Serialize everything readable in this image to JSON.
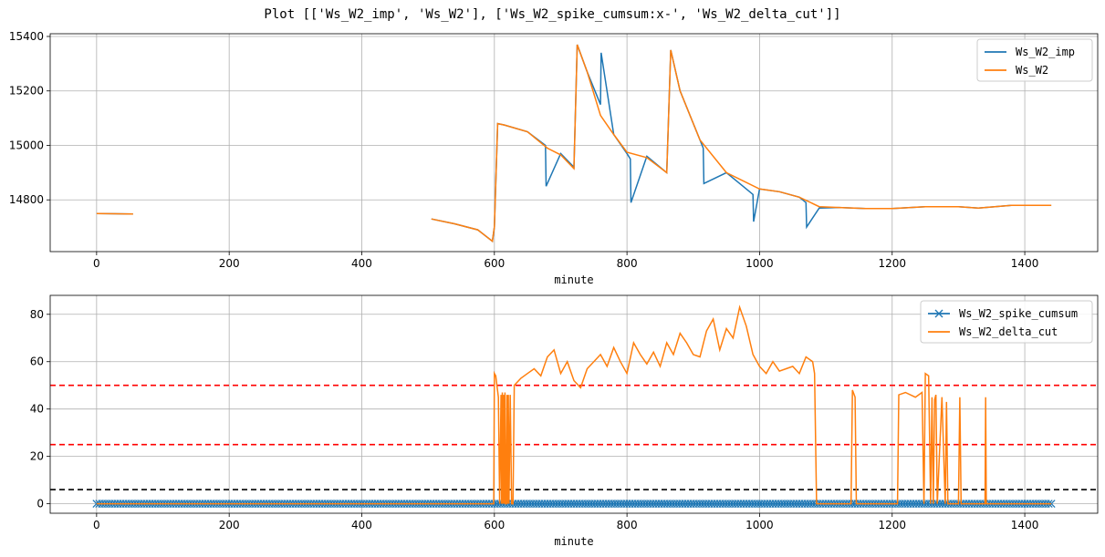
{
  "figure": {
    "title": "Plot [['Ws_W2_imp', 'Ws_W2'], ['Ws_W2_spike_cumsum:x-', 'Ws_W2_delta_cut']]"
  },
  "chart_data": [
    {
      "type": "line",
      "xlabel": "minute",
      "ylabel": "",
      "xlim": [
        -70,
        1510
      ],
      "ylim": [
        14610,
        15410
      ],
      "xticks": [
        0,
        200,
        400,
        600,
        800,
        1000,
        1200,
        1400
      ],
      "yticks": [
        14800,
        15000,
        15200,
        15400
      ],
      "grid": true,
      "legend": "top-right",
      "series": [
        {
          "name": "Ws_W2_imp",
          "color": "#1f77b4",
          "x": [
            0,
            55,
            505,
            540,
            575,
            597,
            600,
            605,
            615,
            650,
            677,
            678,
            700,
            720,
            725,
            740,
            760,
            761,
            780,
            800,
            805,
            806,
            830,
            860,
            866,
            880,
            910,
            915,
            916,
            950,
            975,
            990,
            991,
            1000,
            1030,
            1060,
            1070,
            1071,
            1090,
            1120,
            1160,
            1200,
            1250,
            1300,
            1330,
            1380,
            1440
          ],
          "y": [
            14750,
            14748,
            14730,
            14712,
            14690,
            14648,
            14700,
            15080,
            15075,
            15050,
            15000,
            14850,
            14970,
            14920,
            15370,
            15270,
            15150,
            15340,
            15040,
            14970,
            14950,
            14790,
            14960,
            14900,
            15350,
            15200,
            15020,
            14990,
            14860,
            14900,
            14850,
            14820,
            14720,
            14840,
            14830,
            14810,
            14790,
            14700,
            14770,
            14772,
            14768,
            14768,
            14775,
            14775,
            14770,
            14780,
            14780
          ]
        },
        {
          "name": "Ws_W2",
          "color": "#ff7f0e",
          "x": [
            0,
            55,
            505,
            540,
            575,
            597,
            600,
            605,
            615,
            650,
            680,
            700,
            720,
            725,
            740,
            760,
            780,
            800,
            830,
            860,
            866,
            880,
            910,
            950,
            1000,
            1030,
            1060,
            1090,
            1120,
            1160,
            1200,
            1250,
            1300,
            1330,
            1380,
            1440
          ],
          "y": [
            14750,
            14748,
            14730,
            14712,
            14690,
            14648,
            14700,
            15080,
            15075,
            15050,
            14990,
            14965,
            14915,
            15370,
            15270,
            15110,
            15040,
            14975,
            14955,
            14900,
            15350,
            15200,
            15020,
            14900,
            14840,
            14830,
            14810,
            14775,
            14772,
            14768,
            14768,
            14775,
            14775,
            14770,
            14780,
            14780
          ]
        }
      ],
      "gaps": [
        [
          55,
          505
        ]
      ]
    },
    {
      "type": "line",
      "xlabel": "minute",
      "ylabel": "",
      "xlim": [
        -70,
        1510
      ],
      "ylim": [
        -4,
        88
      ],
      "xticks": [
        0,
        200,
        400,
        600,
        800,
        1000,
        1200,
        1400
      ],
      "yticks": [
        0,
        20,
        40,
        60,
        80
      ],
      "grid": true,
      "legend": "top-right",
      "hlines": [
        {
          "y": 50,
          "color": "#ff0000",
          "style": "dashed"
        },
        {
          "y": 25,
          "color": "#ff0000",
          "style": "dashed"
        },
        {
          "y": 6,
          "color": "#000000",
          "style": "dashed"
        }
      ],
      "series": [
        {
          "name": "Ws_W2_spike_cumsum",
          "color": "#1f77b4",
          "marker": "x",
          "x": [
            0,
            1440
          ],
          "y": [
            0,
            0
          ]
        },
        {
          "name": "Ws_W2_delta_cut",
          "color": "#ff7f0e",
          "x": [
            0,
            599,
            600,
            602,
            606,
            608,
            610,
            611,
            612,
            613,
            614,
            615,
            616,
            617,
            618,
            619,
            620,
            621,
            622,
            624,
            626,
            628,
            630,
            640,
            650,
            660,
            670,
            680,
            690,
            700,
            710,
            720,
            730,
            740,
            750,
            760,
            770,
            780,
            790,
            800,
            810,
            820,
            830,
            840,
            850,
            860,
            870,
            880,
            890,
            900,
            910,
            920,
            930,
            940,
            950,
            960,
            970,
            980,
            990,
            1000,
            1010,
            1020,
            1030,
            1040,
            1050,
            1060,
            1070,
            1080,
            1083,
            1086,
            1138,
            1140,
            1144,
            1146,
            1208,
            1210,
            1220,
            1235,
            1245,
            1248,
            1250,
            1255,
            1258,
            1260,
            1262,
            1264,
            1266,
            1268,
            1275,
            1280,
            1282,
            1284,
            1300,
            1302,
            1304,
            1340,
            1341,
            1342,
            1440
          ],
          "y": [
            0,
            0,
            55,
            54,
            45,
            0,
            46,
            0,
            47,
            0,
            46,
            0,
            47,
            0,
            0,
            46,
            0,
            46,
            0,
            46,
            0,
            0,
            50,
            53,
            55,
            57,
            54,
            62,
            65,
            55,
            60,
            52,
            49,
            57,
            60,
            63,
            58,
            66,
            60,
            55,
            68,
            63,
            59,
            64,
            58,
            68,
            63,
            72,
            68,
            63,
            62,
            73,
            78,
            65,
            74,
            70,
            83,
            75,
            63,
            58,
            55,
            60,
            56,
            57,
            58,
            55,
            62,
            60,
            55,
            0,
            0,
            48,
            45,
            0,
            0,
            46,
            47,
            45,
            47,
            0,
            55,
            54,
            0,
            45,
            0,
            44,
            46,
            0,
            45,
            0,
            43,
            0,
            0,
            45,
            0,
            0,
            45,
            0,
            0
          ]
        }
      ]
    }
  ]
}
